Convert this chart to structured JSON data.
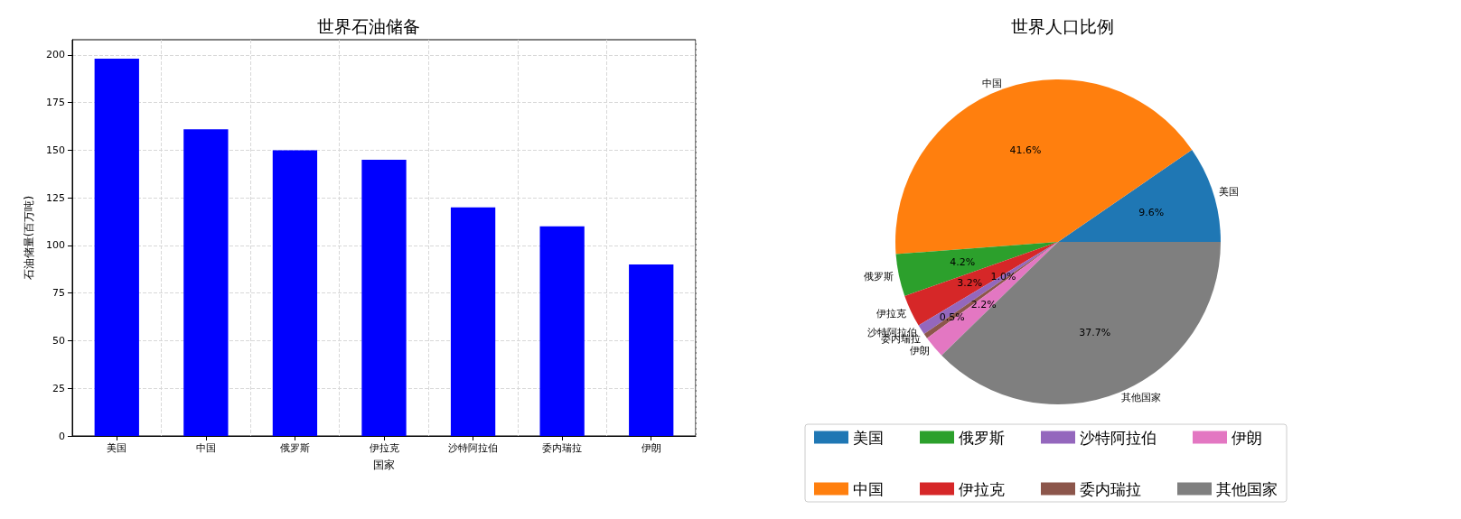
{
  "chart_data": [
    {
      "type": "bar",
      "title": "世界石油储备",
      "xlabel": "国家",
      "ylabel": "石油储量(百万吨)",
      "categories": [
        "美国",
        "中国",
        "俄罗斯",
        "伊拉克",
        "沙特阿拉伯",
        "委内瑞拉",
        "伊朗"
      ],
      "values": [
        198,
        161,
        150,
        145,
        120,
        110,
        90
      ],
      "color": "#0000ff",
      "ylim": [
        0,
        208
      ],
      "yticks": [
        0,
        25,
        50,
        75,
        100,
        125,
        150,
        175,
        200
      ],
      "grid": true
    },
    {
      "type": "pie",
      "title": "世界人口比例",
      "categories": [
        "美国",
        "中国",
        "俄罗斯",
        "伊拉克",
        "沙特阿拉伯",
        "委内瑞拉",
        "伊朗",
        "其他国家"
      ],
      "values": [
        9.6,
        41.6,
        4.2,
        3.2,
        1.0,
        0.5,
        2.2,
        37.7
      ],
      "value_labels": [
        "9.6%",
        "41.6%",
        "4.2%",
        "3.2%",
        "1.0%",
        "0.5%",
        "2.2%",
        "37.7%"
      ],
      "colors": [
        "#1f77b4",
        "#ff7f0e",
        "#2ca02c",
        "#d62728",
        "#9467bd",
        "#8c564b",
        "#e377c2",
        "#7f7f7f"
      ],
      "legend": "bottom"
    }
  ]
}
